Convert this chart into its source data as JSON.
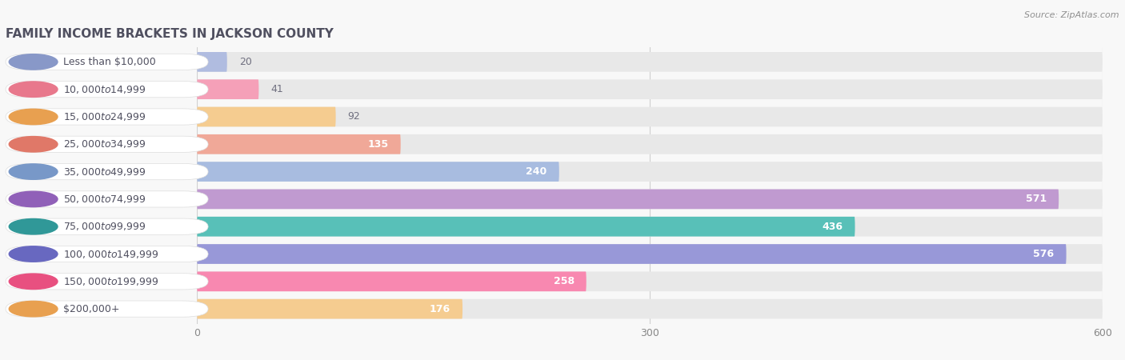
{
  "title": "FAMILY INCOME BRACKETS IN JACKSON COUNTY",
  "source": "Source: ZipAtlas.com",
  "categories": [
    "Less than $10,000",
    "$10,000 to $14,999",
    "$15,000 to $24,999",
    "$25,000 to $34,999",
    "$35,000 to $49,999",
    "$50,000 to $74,999",
    "$75,000 to $99,999",
    "$100,000 to $149,999",
    "$150,000 to $199,999",
    "$200,000+"
  ],
  "values": [
    20,
    41,
    92,
    135,
    240,
    571,
    436,
    576,
    258,
    176
  ],
  "bar_colors": [
    "#b0bce0",
    "#f5a0b8",
    "#f5cc90",
    "#f0a898",
    "#a8bce0",
    "#c09ad0",
    "#58c0b8",
    "#9898d8",
    "#f888b0",
    "#f5cc90"
  ],
  "dot_colors": [
    "#8898c8",
    "#e8788c",
    "#e8a050",
    "#e07868",
    "#7898c8",
    "#9060b8",
    "#309898",
    "#6868c0",
    "#e85080",
    "#e8a050"
  ],
  "xlim": [
    0,
    600
  ],
  "xticks": [
    0,
    300,
    600
  ],
  "bg_color": "#f8f8f8",
  "bar_bg_color": "#e8e8e8",
  "label_bg_color": "#ffffff",
  "title_color": "#505060",
  "label_color": "#505060",
  "value_color_inside": "#ffffff",
  "value_color_outside": "#707080",
  "source_color": "#909090",
  "title_fontsize": 11,
  "label_fontsize": 9,
  "value_fontsize": 9,
  "source_fontsize": 8
}
